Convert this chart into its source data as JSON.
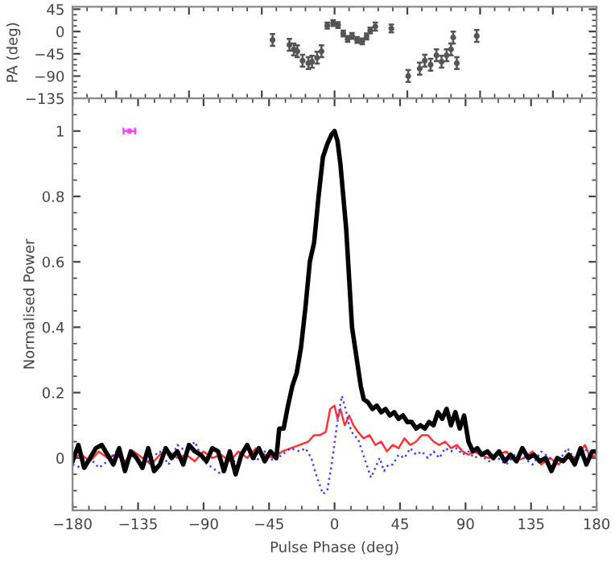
{
  "chart_data": [
    {
      "type": "scatter",
      "ylabel": "PA (deg)",
      "tick_labels": "y",
      "xlim": [
        -180,
        180
      ],
      "ylim": [
        -135,
        50
      ],
      "grid": false,
      "yticks": [
        {
          "value": 45,
          "label": "45"
        },
        {
          "value": 0,
          "label": "0"
        },
        {
          "value": -45,
          "label": "−45"
        },
        {
          "value": -90,
          "label": "−90"
        },
        {
          "value": -135,
          "label": "−135"
        }
      ],
      "series": [
        {
          "color": "#555555",
          "marker": "circle",
          "x": [
            -42.6,
            -31,
            -28,
            -25.6,
            -22,
            -18,
            -15.5,
            -12,
            -9,
            -5,
            -1,
            2.4,
            6,
            9,
            12,
            15.5,
            19,
            22,
            24.5,
            28,
            39,
            50.6,
            58.5,
            62,
            66,
            70,
            73.5,
            77,
            80,
            81.5,
            84,
            97.7
          ],
          "values": [
            -17,
            -27,
            -36,
            -40,
            -59,
            -64,
            -61,
            -53,
            -40,
            12,
            17,
            13,
            -4,
            -15,
            -9,
            -17,
            -20,
            -10,
            2,
            10,
            6,
            -90,
            -75,
            -59,
            -67,
            -48,
            -61,
            -48,
            -36,
            -12,
            -64,
            -9
          ],
          "errors": [
            12,
            12,
            12,
            12,
            12,
            12,
            12,
            12,
            12,
            6,
            6,
            6,
            6,
            6,
            6,
            6,
            6,
            6,
            6,
            8,
            8,
            12,
            12,
            12,
            12,
            12,
            12,
            12,
            12,
            12,
            12,
            12
          ]
        }
      ]
    },
    {
      "type": "line",
      "xlabel": "Pulse Phase (deg)",
      "ylabel": "Normalised Power",
      "xlim": [
        -180,
        180
      ],
      "ylim": [
        -0.16,
        1.1
      ],
      "grid": false,
      "xticks": [
        {
          "value": -180,
          "label": "−180"
        },
        {
          "value": -135,
          "label": "−135"
        },
        {
          "value": -90,
          "label": "−90"
        },
        {
          "value": -45,
          "label": "−45"
        },
        0,
        45,
        90,
        135,
        180
      ],
      "yticks": [
        0,
        0.2,
        0.4,
        0.6,
        0.8,
        1
      ],
      "series": [
        {
          "color": "#ff3333",
          "line_style": "solid",
          "x": [
            -180,
            -174,
            -168,
            -162,
            -156,
            -150,
            -144,
            -138,
            -132,
            -126,
            -120,
            -114,
            -108,
            -102,
            -96,
            -90,
            -84,
            -78,
            -72,
            -66,
            -60,
            -54,
            -48,
            -42,
            -36,
            -30,
            -24,
            -18,
            -14,
            -10,
            -6,
            -3,
            0,
            2,
            4,
            7,
            10,
            13,
            16,
            20,
            24,
            28,
            32,
            36,
            40,
            44,
            48,
            52,
            56,
            60,
            64,
            68,
            72,
            76,
            80,
            84,
            88,
            92,
            96,
            100,
            106,
            112,
            118,
            124,
            130,
            136,
            142,
            148,
            154,
            160,
            166,
            172,
            176,
            180
          ],
          "values": [
            0.0,
            0.01,
            -0.01,
            0.02,
            0.0,
            0.01,
            -0.01,
            0.02,
            0.0,
            -0.02,
            0.01,
            0.02,
            0.0,
            0.01,
            -0.01,
            0.02,
            0.0,
            0.01,
            -0.01,
            0.02,
            0.0,
            0.03,
            0.01,
            0.0,
            0.02,
            0.03,
            0.04,
            0.05,
            0.07,
            0.07,
            0.08,
            0.15,
            0.16,
            0.12,
            0.15,
            0.1,
            0.13,
            0.1,
            0.08,
            0.06,
            0.07,
            0.04,
            0.05,
            0.02,
            0.04,
            0.03,
            0.06,
            0.04,
            0.05,
            0.07,
            0.07,
            0.05,
            0.04,
            0.05,
            0.03,
            0.04,
            0.02,
            0.01,
            0.02,
            0.01,
            0.0,
            0.01,
            0.02,
            -0.01,
            0.0,
            0.02,
            -0.02,
            0.0,
            -0.02,
            0.01,
            0.0,
            0.04,
            0.0,
            0.01
          ]
        },
        {
          "color": "#4444ff",
          "line_style": "dotted",
          "x": [
            -180,
            -174,
            -168,
            -162,
            -156,
            -150,
            -144,
            -138,
            -132,
            -126,
            -120,
            -114,
            -108,
            -102,
            -96,
            -90,
            -84,
            -78,
            -72,
            -66,
            -60,
            -54,
            -48,
            -42,
            -36,
            -30,
            -24,
            -20,
            -16,
            -12,
            -8,
            -5,
            -2,
            1,
            3,
            5,
            7,
            10,
            13,
            16,
            19,
            22,
            25,
            28,
            31,
            34,
            37,
            40,
            44,
            48,
            52,
            56,
            60,
            64,
            68,
            72,
            76,
            80,
            84,
            88,
            92,
            96,
            100,
            106,
            112,
            118,
            124,
            130,
            136,
            142,
            148,
            154,
            160,
            166,
            172,
            176,
            180
          ],
          "values": [
            -0.02,
            -0.03,
            0.0,
            -0.03,
            -0.01,
            0.02,
            -0.02,
            0.01,
            -0.03,
            0.0,
            0.02,
            -0.02,
            0.04,
            0.02,
            0.05,
            -0.01,
            -0.03,
            -0.05,
            0.0,
            -0.02,
            0.04,
            -0.01,
            0.02,
            -0.01,
            0.01,
            0.03,
            0.02,
            0.03,
            0.0,
            -0.06,
            -0.11,
            -0.1,
            -0.02,
            0.08,
            0.14,
            0.19,
            0.16,
            0.1,
            0.07,
            0.06,
            0.02,
            -0.02,
            -0.06,
            -0.03,
            0.0,
            -0.04,
            -0.02,
            -0.02,
            0.01,
            0.0,
            0.03,
            0.01,
            0.02,
            0.0,
            0.02,
            0.0,
            0.03,
            0.02,
            0.03,
            0.01,
            0.02,
            0.0,
            0.01,
            -0.01,
            0.0,
            -0.02,
            0.01,
            0.0,
            -0.02,
            0.02,
            0.0,
            -0.01,
            0.03,
            -0.01,
            0.03,
            0.0,
            0.02
          ]
        },
        {
          "color": "#000000",
          "line_style": "solid",
          "x": [
            -180,
            -176,
            -172,
            -168,
            -164,
            -160,
            -156,
            -152,
            -148,
            -144,
            -140,
            -136,
            -132,
            -128,
            -124,
            -120,
            -116,
            -112,
            -108,
            -104,
            -100,
            -96,
            -92,
            -88,
            -84,
            -80,
            -76,
            -72,
            -68,
            -64,
            -60,
            -56,
            -52,
            -48,
            -44,
            -40,
            -38,
            -35,
            -32,
            -29,
            -26,
            -23,
            -20,
            -17,
            -14,
            -11,
            -8,
            -5,
            -2,
            0,
            2,
            4,
            6,
            8,
            10,
            12,
            14,
            16,
            18,
            20,
            23,
            26,
            29,
            32,
            35,
            38,
            41,
            44,
            47,
            50,
            53,
            56,
            59,
            62,
            65,
            68,
            71,
            74,
            77,
            80,
            83,
            86,
            89,
            92,
            95,
            98,
            101,
            105,
            109,
            113,
            117,
            121,
            125,
            129,
            133,
            137,
            141,
            145,
            149,
            153,
            157,
            161,
            165,
            169,
            173,
            177,
            180
          ],
          "values": [
            -0.01,
            0.04,
            -0.03,
            0.0,
            0.03,
            0.04,
            0.01,
            -0.02,
            0.03,
            -0.04,
            0.02,
            0.0,
            -0.03,
            0.03,
            -0.04,
            -0.02,
            0.03,
            0.0,
            0.02,
            -0.02,
            0.04,
            0.02,
            0.01,
            -0.01,
            0.03,
            0.02,
            -0.04,
            0.02,
            -0.05,
            0.01,
            0.04,
            0.0,
            0.03,
            -0.01,
            0.02,
            0.0,
            0.09,
            0.09,
            0.16,
            0.22,
            0.26,
            0.34,
            0.46,
            0.6,
            0.66,
            0.8,
            0.92,
            0.96,
            0.99,
            1.0,
            0.97,
            0.9,
            0.8,
            0.7,
            0.55,
            0.4,
            0.34,
            0.28,
            0.22,
            0.18,
            0.17,
            0.15,
            0.16,
            0.14,
            0.15,
            0.13,
            0.14,
            0.12,
            0.13,
            0.11,
            0.11,
            0.09,
            0.1,
            0.09,
            0.11,
            0.1,
            0.14,
            0.12,
            0.15,
            0.1,
            0.14,
            0.09,
            0.13,
            0.05,
            0.02,
            0.03,
            0.01,
            0.02,
            0.0,
            0.02,
            -0.01,
            0.01,
            -0.01,
            0.03,
            0.0,
            0.01,
            -0.01,
            0.0,
            -0.04,
            0.0,
            -0.01,
            0.01,
            -0.02,
            0.03,
            -0.02,
            0.02,
            0.02
          ]
        },
        {
          "type": "scatter",
          "color": "#ff44ff",
          "marker": "circle",
          "x": [
            -141
          ],
          "values": [
            1
          ],
          "xerrors": [
            4
          ]
        }
      ]
    }
  ]
}
